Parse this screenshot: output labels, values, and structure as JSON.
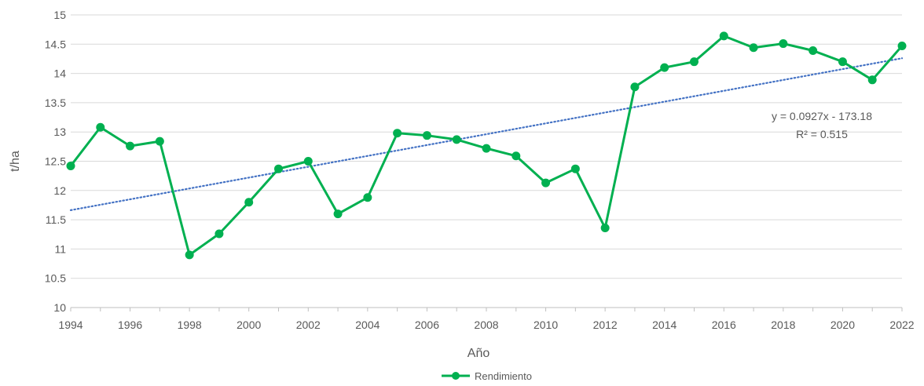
{
  "chart_data": {
    "type": "line",
    "title": "",
    "xlabel": "Año",
    "ylabel": "t/ha",
    "xlim": [
      1994,
      2022
    ],
    "ylim": [
      10,
      15
    ],
    "x_ticks": [
      "1994",
      "1996",
      "1998",
      "2000",
      "2002",
      "2004",
      "2006",
      "2008",
      "2010",
      "2012",
      "2014",
      "2016",
      "2018",
      "2020",
      "2022"
    ],
    "y_ticks": [
      "10",
      "10.5",
      "11",
      "11.5",
      "12",
      "12.5",
      "13",
      "13.5",
      "14",
      "14.5",
      "15"
    ],
    "grid": true,
    "legend_position": "bottom",
    "x": [
      1994,
      1995,
      1996,
      1997,
      1998,
      1999,
      2000,
      2001,
      2002,
      2003,
      2004,
      2005,
      2006,
      2007,
      2008,
      2009,
      2010,
      2011,
      2012,
      2013,
      2014,
      2015,
      2016,
      2017,
      2018,
      2019,
      2020,
      2021,
      2022
    ],
    "series": [
      {
        "name": "Rendimiento",
        "color": "#00B050",
        "values": [
          12.42,
          13.08,
          12.76,
          12.84,
          10.9,
          11.26,
          11.8,
          12.37,
          12.5,
          11.6,
          11.88,
          12.98,
          12.94,
          12.87,
          12.72,
          12.59,
          12.13,
          12.37,
          11.36,
          13.77,
          14.1,
          14.2,
          14.64,
          14.44,
          14.51,
          14.39,
          14.2,
          13.89,
          14.47
        ]
      }
    ],
    "trendline": {
      "type": "linear",
      "style": "dotted",
      "color": "#4472C4",
      "slope": 0.0927,
      "intercept": -173.18,
      "equation_label": "y = 0.0927x - 173.18",
      "r2_label": "R² = 0.515"
    }
  }
}
